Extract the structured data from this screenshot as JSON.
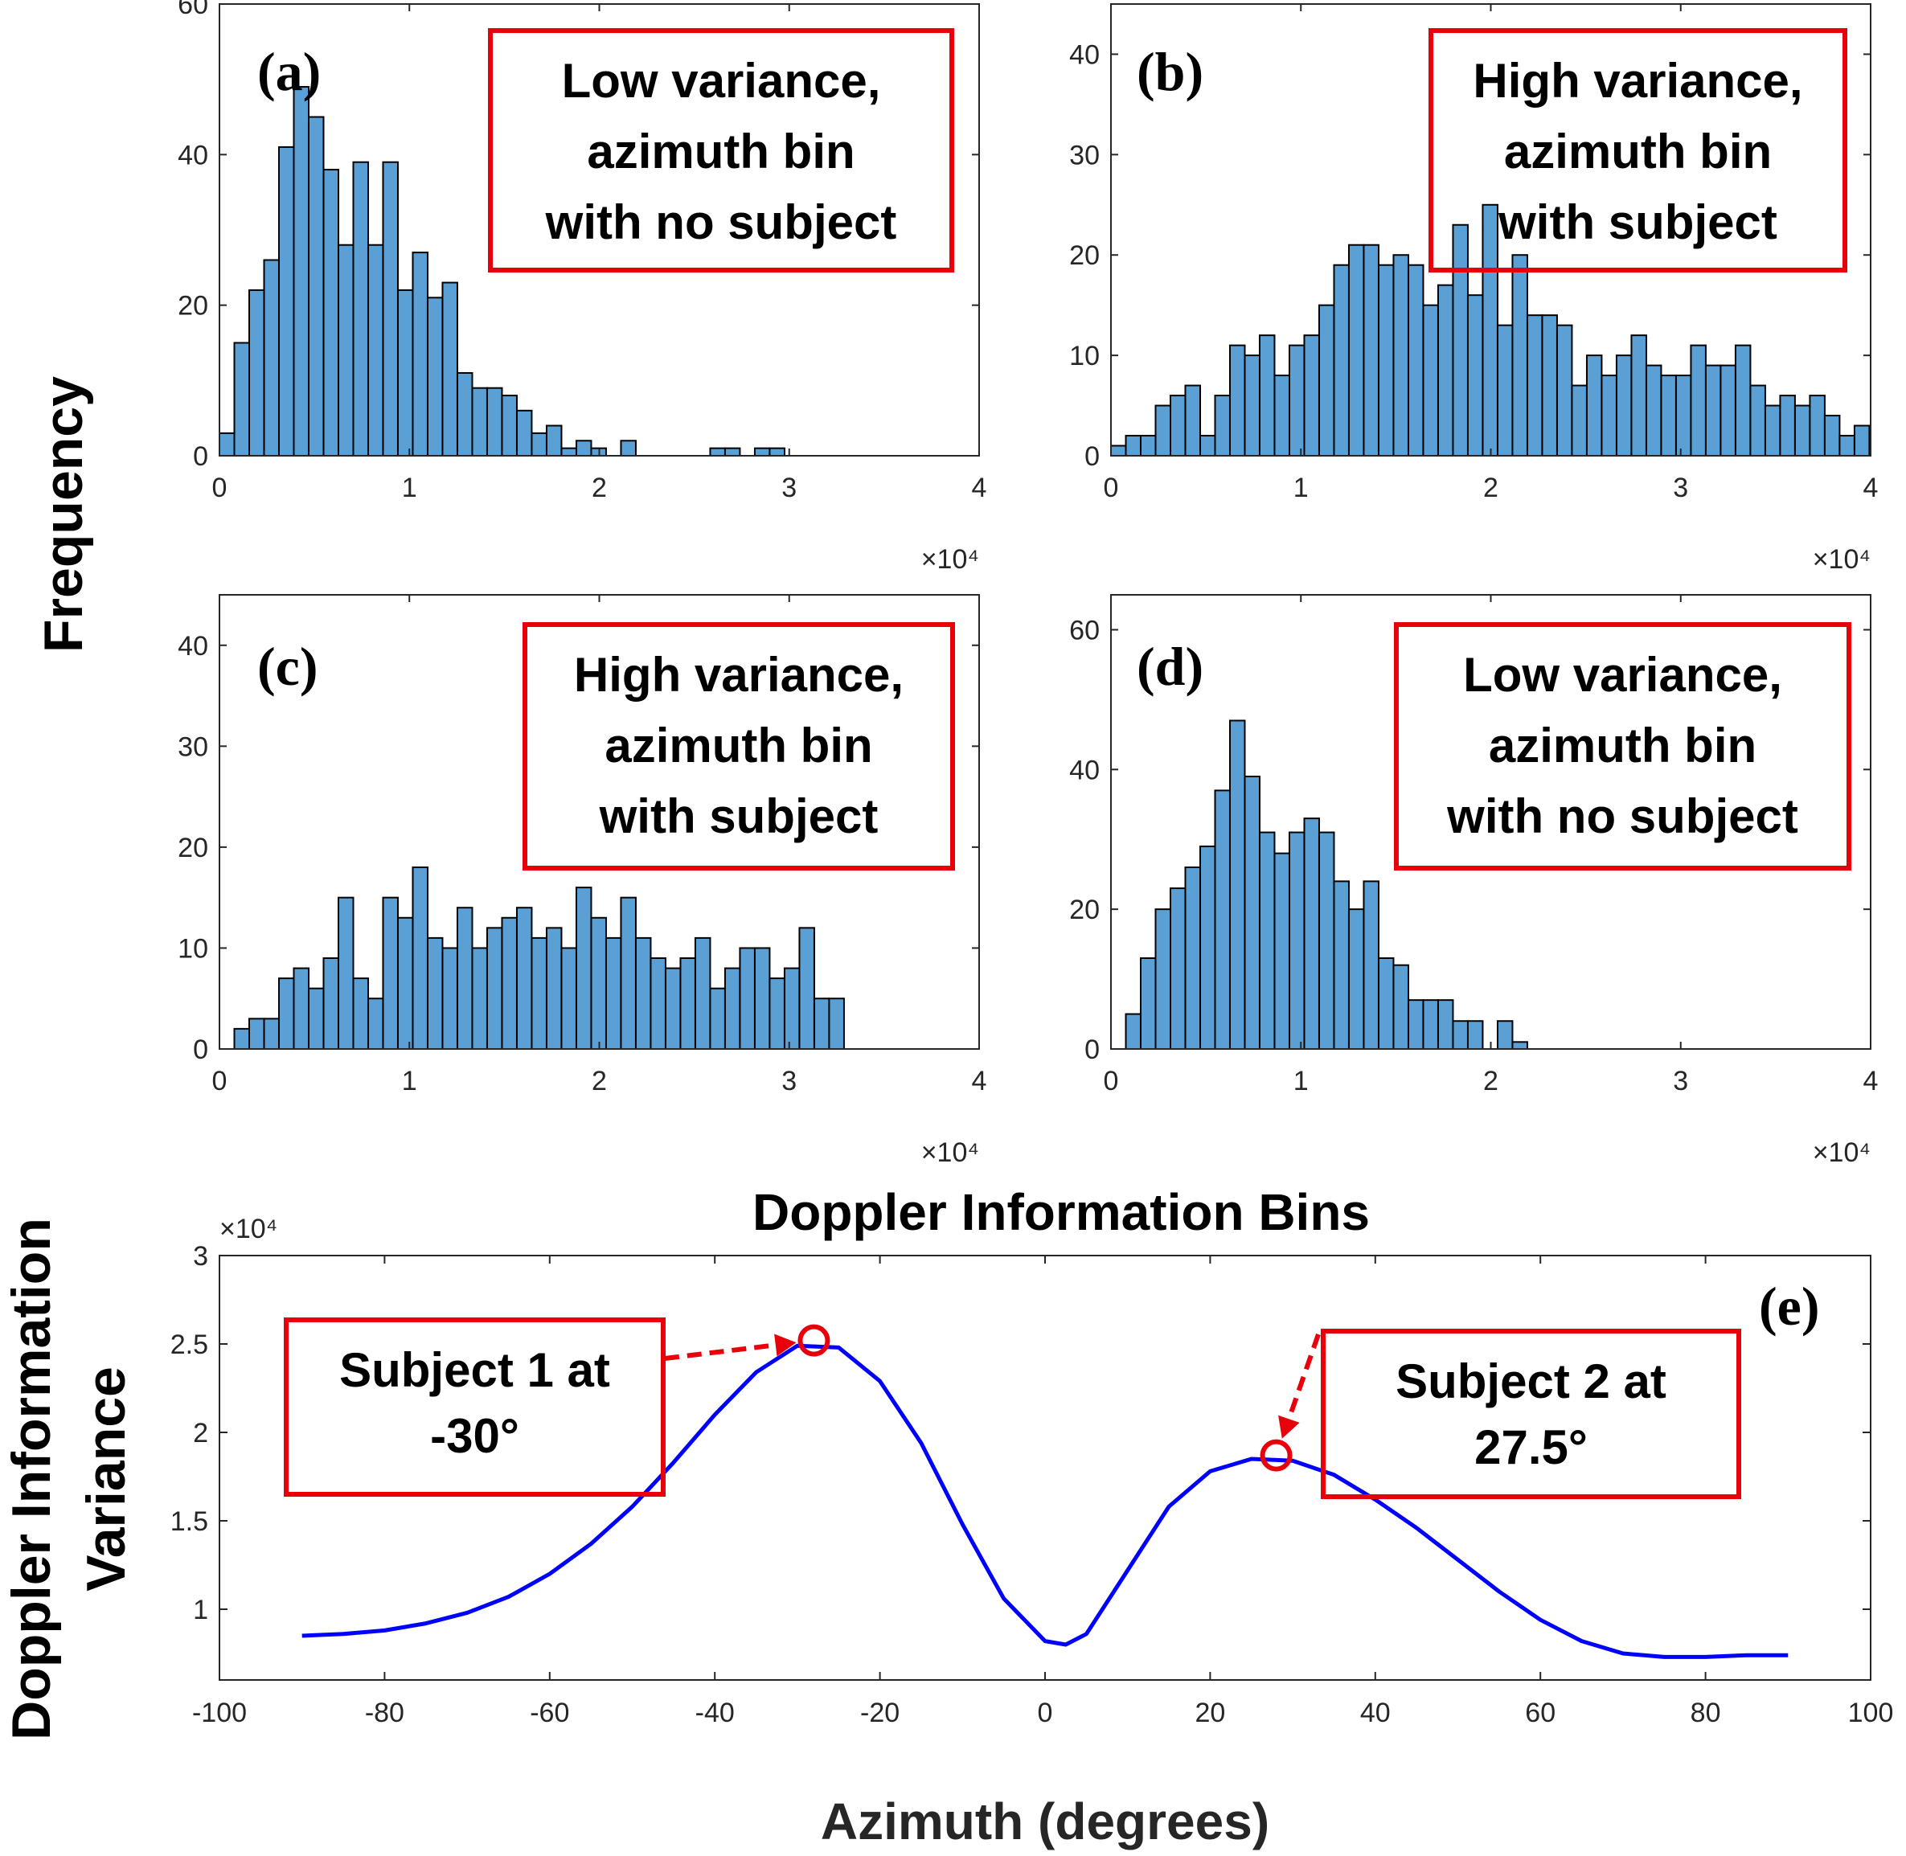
{
  "figure": {
    "common_ylabel": "Frequency",
    "histogram_xlabel": "Doppler Information Bins",
    "accent_color": "#e8000b",
    "bar_color": "#5aa0d5",
    "line_color": "#0000ff"
  },
  "chart_data": [
    {
      "id": "a",
      "type": "bar",
      "panel_label": "(a)",
      "annotation": [
        "Low variance,",
        "azimuth bin",
        "with no subject"
      ],
      "x_range": [
        0,
        4
      ],
      "x_ticks": [
        "0",
        "1",
        "2",
        "3",
        "4"
      ],
      "x_multiplier": "×10⁴",
      "ylim": [
        0,
        60
      ],
      "y_ticks": [
        "0",
        "20",
        "40",
        "60"
      ],
      "bin_width": 0.0783,
      "bin_start": 0,
      "values": [
        3,
        15,
        22,
        26,
        41,
        49,
        45,
        38,
        28,
        39,
        28,
        39,
        22,
        27,
        21,
        23,
        11,
        9,
        9,
        8,
        6,
        3,
        4,
        1,
        2,
        1,
        0,
        2,
        0,
        0,
        0,
        0,
        0,
        1,
        1,
        0,
        1,
        1,
        0,
        0,
        0,
        0,
        0,
        0,
        0,
        0,
        0,
        0,
        0,
        0,
        0
      ]
    },
    {
      "id": "b",
      "type": "bar",
      "panel_label": "(b)",
      "annotation": [
        "High variance,",
        "azimuth bin",
        "with subject"
      ],
      "x_range": [
        0,
        4
      ],
      "x_ticks": [
        "0",
        "1",
        "2",
        "3",
        "4"
      ],
      "x_multiplier": "×10⁴",
      "ylim": [
        0,
        45
      ],
      "y_ticks": [
        "0",
        "10",
        "20",
        "30",
        "40"
      ],
      "bin_width": 0.0783,
      "bin_start": 0,
      "values": [
        1,
        2,
        2,
        5,
        6,
        7,
        2,
        6,
        11,
        10,
        12,
        8,
        11,
        12,
        15,
        19,
        21,
        21,
        19,
        20,
        19,
        15,
        17,
        23,
        16,
        25,
        13,
        20,
        14,
        14,
        13,
        7,
        10,
        8,
        10,
        12,
        9,
        8,
        8,
        11,
        9,
        9,
        11,
        7,
        5,
        6,
        5,
        6,
        4,
        2,
        3
      ]
    },
    {
      "id": "c",
      "type": "bar",
      "panel_label": "(c)",
      "annotation": [
        "High variance,",
        "azimuth bin",
        "with subject"
      ],
      "x_range": [
        0,
        4
      ],
      "x_ticks": [
        "0",
        "1",
        "2",
        "3",
        "4"
      ],
      "x_multiplier": "×10⁴",
      "ylim": [
        0,
        45
      ],
      "y_ticks": [
        "0",
        "10",
        "20",
        "30",
        "40"
      ],
      "bin_width": 0.0783,
      "bin_start": 0.0783,
      "values": [
        2,
        3,
        3,
        7,
        8,
        6,
        9,
        15,
        7,
        5,
        15,
        13,
        18,
        11,
        10,
        14,
        10,
        12,
        13,
        14,
        11,
        12,
        10,
        16,
        13,
        11,
        15,
        11,
        9,
        8,
        9,
        11,
        6,
        8,
        10,
        10,
        7,
        8,
        12,
        5,
        5
      ]
    },
    {
      "id": "d",
      "type": "bar",
      "panel_label": "(d)",
      "annotation": [
        "Low variance,",
        "azimuth bin",
        "with no subject"
      ],
      "x_range": [
        0,
        4
      ],
      "x_ticks": [
        "0",
        "1",
        "2",
        "3",
        "4"
      ],
      "x_multiplier": "×10⁴",
      "ylim": [
        0,
        65
      ],
      "y_ticks": [
        "0",
        "20",
        "40",
        "60"
      ],
      "bin_width": 0.0783,
      "bin_start": 0.0783,
      "values": [
        5,
        13,
        20,
        23,
        26,
        29,
        37,
        47,
        39,
        31,
        28,
        31,
        33,
        31,
        24,
        20,
        24,
        13,
        12,
        7,
        7,
        7,
        4,
        4,
        0,
        4,
        1,
        0,
        0,
        0,
        0,
        0,
        0,
        0,
        0,
        0,
        0,
        0,
        0,
        0,
        0,
        0,
        0,
        0,
        0,
        0,
        0,
        0,
        0,
        0,
        0
      ]
    },
    {
      "id": "e",
      "type": "line",
      "panel_label": "(e)",
      "xlabel": "Azimuth (degrees)",
      "ylabel": [
        "Doppler Information",
        "Variance"
      ],
      "xlim": [
        -100,
        100
      ],
      "x_ticks": [
        "-100",
        "-80",
        "-60",
        "-40",
        "-20",
        "0",
        "20",
        "40",
        "60",
        "80",
        "100"
      ],
      "ylim": [
        0.6,
        3
      ],
      "y_ticks": [
        "1",
        "1.5",
        "2",
        "2.5",
        "3"
      ],
      "y_multiplier": "×10⁴",
      "series": [
        {
          "name": "variance",
          "x": [
            -90,
            -85,
            -80,
            -75,
            -70,
            -65,
            -60,
            -55,
            -50,
            -45,
            -40,
            -35,
            -30,
            -25,
            -20,
            -15,
            -10,
            -5,
            0,
            2.5,
            5,
            10,
            15,
            20,
            25,
            30,
            35,
            40,
            45,
            50,
            55,
            60,
            65,
            70,
            75,
            80,
            85,
            90
          ],
          "y": [
            0.85,
            0.86,
            0.88,
            0.92,
            0.98,
            1.07,
            1.2,
            1.37,
            1.58,
            1.83,
            2.1,
            2.34,
            2.49,
            2.48,
            2.29,
            1.94,
            1.48,
            1.06,
            0.82,
            0.8,
            0.86,
            1.22,
            1.58,
            1.78,
            1.85,
            1.84,
            1.76,
            1.62,
            1.46,
            1.28,
            1.1,
            0.94,
            0.82,
            0.75,
            0.73,
            0.73,
            0.74,
            0.74
          ]
        }
      ],
      "annotations": [
        {
          "text": [
            "Subject 1 at",
            "-30°"
          ],
          "point": [
            -28,
            2.52
          ]
        },
        {
          "text": [
            "Subject 2 at",
            "27.5°"
          ],
          "point": [
            28,
            1.87
          ]
        }
      ]
    }
  ]
}
